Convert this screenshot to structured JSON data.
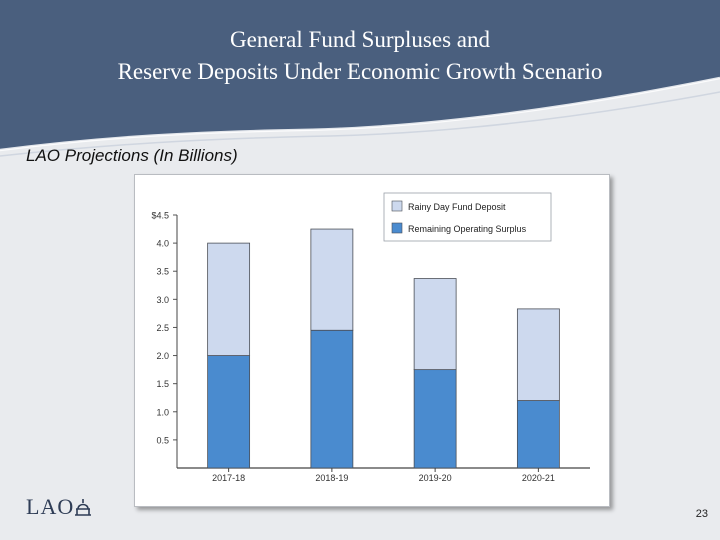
{
  "slide": {
    "title_line1": "General Fund Surpluses and",
    "title_line2": "Reserve Deposits Under Economic Growth Scenario",
    "subtitle": "LAO Projections (In Billions)",
    "logo_text": "LAO",
    "page_number": "23"
  },
  "colors": {
    "header": "#4a5f7e",
    "rainy_day": "#cdd9ee",
    "operating": "#4a8bcf"
  },
  "icons": {
    "logo_mark": "dome-icon"
  },
  "chart_data": {
    "type": "bar",
    "stacked": true,
    "categories": [
      "2017-18",
      "2018-19",
      "2019-20",
      "2020-21"
    ],
    "series": [
      {
        "name": "Remaining Operating Surplus",
        "values": [
          2.0,
          2.45,
          1.75,
          1.2
        ]
      },
      {
        "name": "Rainy Day Fund Deposit",
        "values": [
          2.0,
          1.8,
          1.62,
          1.63
        ]
      }
    ],
    "ylim": [
      0,
      4.5
    ],
    "yticks": [
      "",
      "0.5",
      "1.0",
      "1.5",
      "2.0",
      "2.5",
      "3.0",
      "3.5",
      "4.0",
      "$4.5"
    ],
    "legend_position": "top-right",
    "grid": false
  }
}
